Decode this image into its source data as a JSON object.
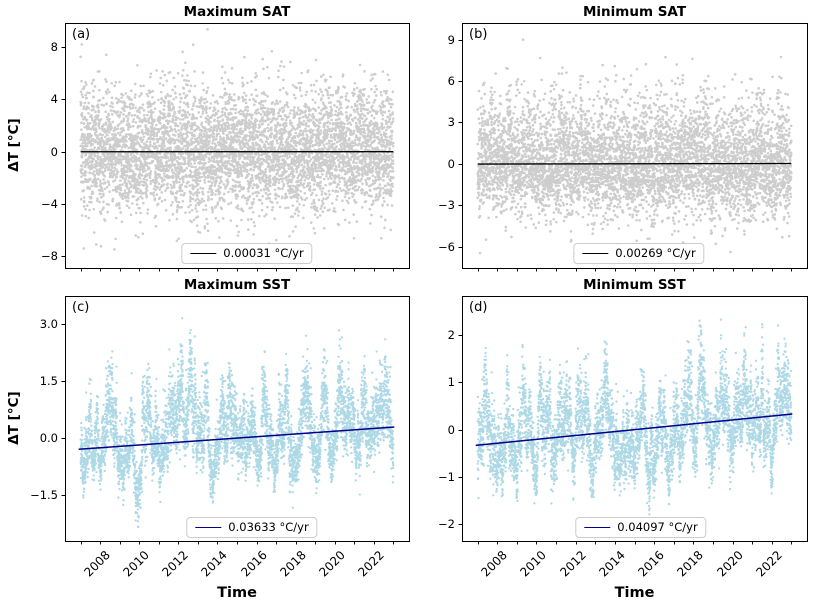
{
  "figure": {
    "background": "#ffffff",
    "text_color": "#000000",
    "spine_color": "#000000"
  },
  "chart_data": [
    {
      "panel": "a",
      "panel_label": "(a)",
      "title": "Maximum SAT",
      "type": "scatter",
      "ylabel": "ΔT [°C]",
      "xlabel": "",
      "xlim": [
        2006.2,
        2023.8
      ],
      "ylim": [
        -8.9,
        9.85
      ],
      "xticks_minor_years": [
        2007,
        2008,
        2009,
        2010,
        2011,
        2012,
        2013,
        2014,
        2015,
        2016,
        2017,
        2018,
        2019,
        2020,
        2021,
        2022,
        2023
      ],
      "xticks_labeled": [],
      "show_xtick_labels": false,
      "yticks": [
        {
          "v": 8,
          "label": "8"
        },
        {
          "v": 4,
          "label": "4"
        },
        {
          "v": 0,
          "label": "0"
        },
        {
          "v": -4,
          "label": "−4"
        },
        {
          "v": -8,
          "label": "−8"
        }
      ],
      "trend": {
        "label": "0.00031 °C/yr",
        "slope_per_yr": 0.00031,
        "color": "#000000",
        "x_start": 2007.0,
        "x_end": 2023.0,
        "y_center": 0.0,
        "line_width": 1.3
      },
      "scatter": {
        "color": "#cdcdcd",
        "n_points": 5844,
        "x_start": 2007.0,
        "x_end": 2023.0,
        "marker_radius_px": 1.3,
        "sim": {
          "seed": 11,
          "slow_phi": 0.9,
          "slow_innov_sd": 0.24,
          "fast_sd": 2.15,
          "seasonal_amp": 0.35,
          "skew_up": 1.1,
          "skew_down": 0.97,
          "follow_trend": false,
          "clamp": [
            -8.5,
            9.4
          ]
        }
      }
    },
    {
      "panel": "b",
      "panel_label": "(b)",
      "title": "Minimum SAT",
      "type": "scatter",
      "ylabel": "",
      "xlabel": "",
      "xlim": [
        2006.2,
        2023.8
      ],
      "ylim": [
        -7.55,
        10.2
      ],
      "xticks_minor_years": [
        2007,
        2008,
        2009,
        2010,
        2011,
        2012,
        2013,
        2014,
        2015,
        2016,
        2017,
        2018,
        2019,
        2020,
        2021,
        2022,
        2023
      ],
      "xticks_labeled": [],
      "show_xtick_labels": false,
      "yticks": [
        {
          "v": 9,
          "label": "9"
        },
        {
          "v": 6,
          "label": "6"
        },
        {
          "v": 3,
          "label": "3"
        },
        {
          "v": 0,
          "label": "0"
        },
        {
          "v": -3,
          "label": "−3"
        },
        {
          "v": -6,
          "label": "−6"
        }
      ],
      "trend": {
        "label": "0.00269 °C/yr",
        "slope_per_yr": 0.00269,
        "color": "#000000",
        "x_start": 2007.0,
        "x_end": 2023.0,
        "y_center": 0.0,
        "line_width": 1.3
      },
      "scatter": {
        "color": "#cdcdcd",
        "n_points": 5844,
        "x_start": 2007.0,
        "x_end": 2023.0,
        "marker_radius_px": 1.3,
        "sim": {
          "seed": 22,
          "slow_phi": 0.9,
          "slow_innov_sd": 0.26,
          "fast_sd": 1.95,
          "seasonal_amp": 0.3,
          "skew_up": 1.22,
          "skew_down": 0.9,
          "follow_trend": false,
          "clamp": [
            -6.6,
            9.35
          ]
        }
      }
    },
    {
      "panel": "c",
      "panel_label": "(c)",
      "title": "Maximum SST",
      "type": "scatter",
      "ylabel": "ΔT [°C]",
      "xlabel": "Time",
      "xlim": [
        2006.2,
        2023.8
      ],
      "ylim": [
        -2.72,
        3.74
      ],
      "xticks_minor_years": [
        2007,
        2008,
        2009,
        2010,
        2011,
        2012,
        2013,
        2014,
        2015,
        2016,
        2017,
        2018,
        2019,
        2020,
        2021,
        2022,
        2023
      ],
      "xticks_labeled": [
        {
          "v": 2008,
          "label": "2008"
        },
        {
          "v": 2010,
          "label": "2010"
        },
        {
          "v": 2012,
          "label": "2012"
        },
        {
          "v": 2014,
          "label": "2014"
        },
        {
          "v": 2016,
          "label": "2016"
        },
        {
          "v": 2018,
          "label": "2018"
        },
        {
          "v": 2020,
          "label": "2020"
        },
        {
          "v": 2022,
          "label": "2022"
        }
      ],
      "show_xtick_labels": true,
      "yticks": [
        {
          "v": 3.0,
          "label": "3.0"
        },
        {
          "v": 1.5,
          "label": "1.5"
        },
        {
          "v": 0.0,
          "label": "0.0"
        },
        {
          "v": -1.5,
          "label": "−1.5"
        }
      ],
      "trend": {
        "label": "0.03633 °C/yr",
        "slope_per_yr": 0.03633,
        "color": "#00008B",
        "x_start": 2006.9,
        "x_end": 2023.05,
        "y_center": -0.007,
        "line_width": 1.5
      },
      "scatter": {
        "color": "#ADD8E6",
        "n_points": 5844,
        "x_start": 2007.0,
        "x_end": 2023.0,
        "marker_radius_px": 1.15,
        "sim": {
          "seed": 33,
          "slow_phi": 0.975,
          "slow_innov_sd": 0.111,
          "fast_sd": 0.35,
          "seasonal_amp": 0.45,
          "skew_up": 1.3,
          "skew_down": 0.85,
          "follow_trend": true,
          "clamp": [
            -2.45,
            3.42
          ]
        }
      }
    },
    {
      "panel": "d",
      "panel_label": "(d)",
      "title": "Minimum SST",
      "type": "scatter",
      "ylabel": "",
      "xlabel": "Time",
      "xlim": [
        2006.2,
        2023.8
      ],
      "ylim": [
        -2.35,
        2.82
      ],
      "xticks_minor_years": [
        2007,
        2008,
        2009,
        2010,
        2011,
        2012,
        2013,
        2014,
        2015,
        2016,
        2017,
        2018,
        2019,
        2020,
        2021,
        2022,
        2023
      ],
      "xticks_labeled": [
        {
          "v": 2008,
          "label": "2008"
        },
        {
          "v": 2010,
          "label": "2010"
        },
        {
          "v": 2012,
          "label": "2012"
        },
        {
          "v": 2014,
          "label": "2014"
        },
        {
          "v": 2016,
          "label": "2016"
        },
        {
          "v": 2018,
          "label": "2018"
        },
        {
          "v": 2020,
          "label": "2020"
        },
        {
          "v": 2022,
          "label": "2022"
        }
      ],
      "show_xtick_labels": true,
      "yticks": [
        {
          "v": 2,
          "label": "2"
        },
        {
          "v": 1,
          "label": "1"
        },
        {
          "v": 0,
          "label": "0"
        },
        {
          "v": -1,
          "label": "−1"
        },
        {
          "v": -2,
          "label": "−2"
        }
      ],
      "trend": {
        "label": "0.04097 °C/yr",
        "slope_per_yr": 0.04097,
        "color": "#00008B",
        "x_start": 2006.9,
        "x_end": 2023.05,
        "y_center": 0.0,
        "line_width": 1.5
      },
      "scatter": {
        "color": "#ADD8E6",
        "n_points": 5844,
        "x_start": 2007.0,
        "x_end": 2023.0,
        "marker_radius_px": 1.15,
        "sim": {
          "seed": 44,
          "slow_phi": 0.975,
          "slow_innov_sd": 0.1,
          "fast_sd": 0.32,
          "seasonal_amp": 0.4,
          "skew_up": 1.18,
          "skew_down": 0.88,
          "follow_trend": true,
          "clamp": [
            -2.05,
            2.56
          ]
        }
      }
    }
  ]
}
